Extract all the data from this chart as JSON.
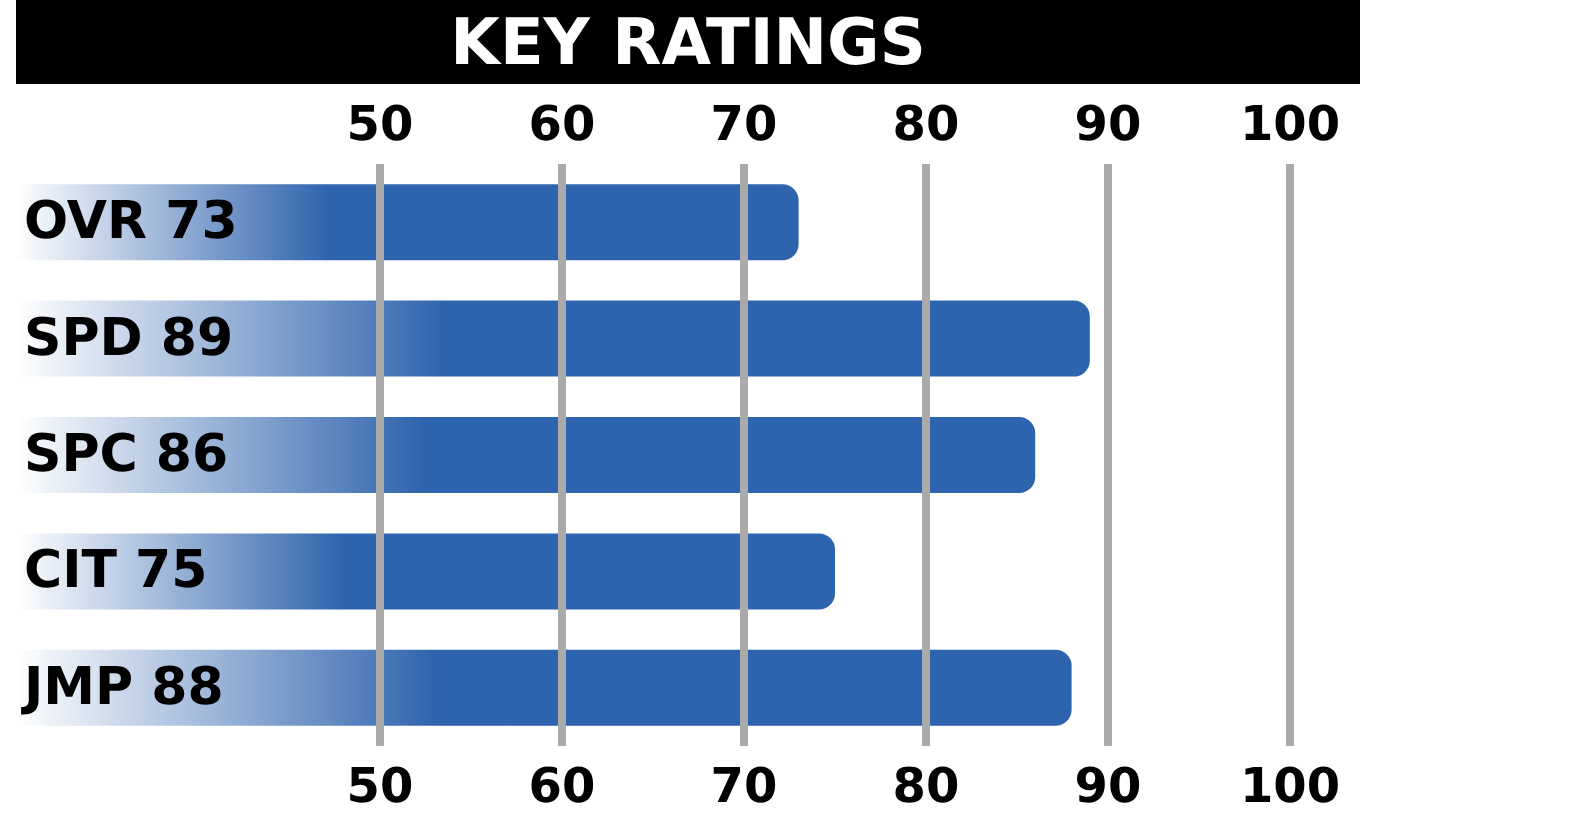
{
  "chart_data": {
    "type": "bar",
    "title": "KEY RATINGS",
    "orientation": "horizontal",
    "categories": [
      "OVR 73",
      "SPD 89",
      "SPC 86",
      "CIT 75",
      "JMP 88"
    ],
    "values": [
      73,
      89,
      86,
      75,
      88
    ],
    "color": "#2e63ad",
    "xlim": [
      30,
      100
    ],
    "xticks": [
      50,
      60,
      70,
      80,
      90,
      100
    ],
    "x2lim": [
      30,
      100
    ],
    "x2ticks": [
      50,
      60,
      70,
      80,
      90,
      100
    ],
    "grid": "x"
  }
}
